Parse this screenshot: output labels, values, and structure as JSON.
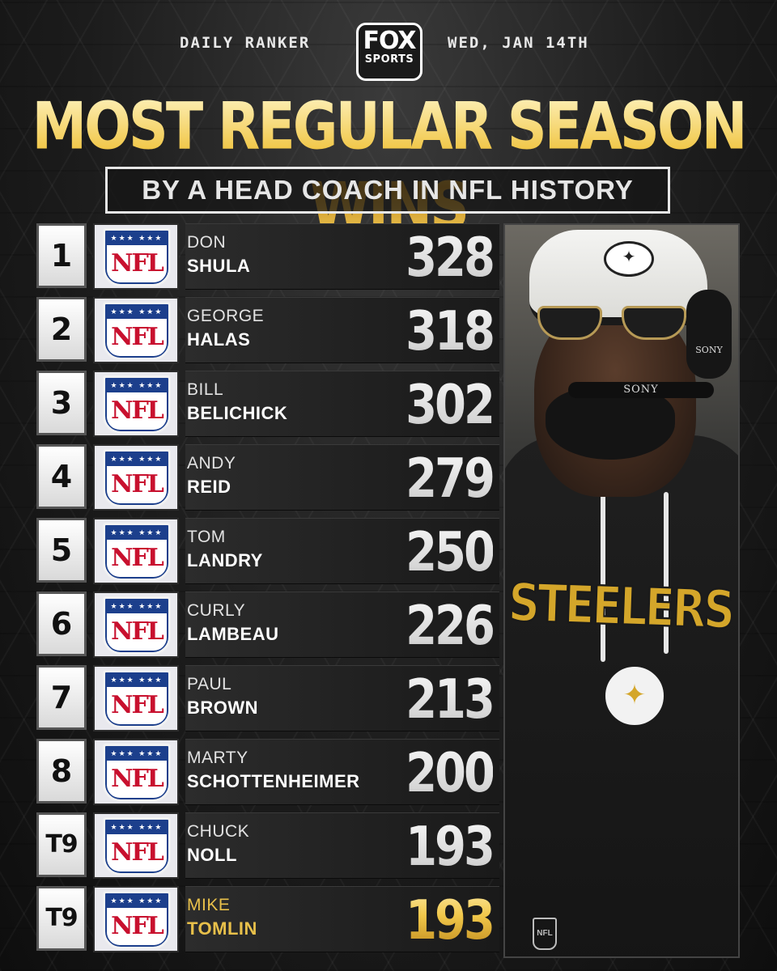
{
  "header": {
    "left": "DAILY RANKER",
    "right": "WED, JAN 14TH",
    "logo_top": "FOX",
    "logo_bottom": "SPORTS"
  },
  "title": "MOST REGULAR SEASON WINS",
  "subtitle": "BY A HEAD COACH IN NFL HISTORY",
  "logo_text": "NFL",
  "rows": [
    {
      "rank": "1",
      "first": "DON",
      "last": "SHULA",
      "wins": "328"
    },
    {
      "rank": "2",
      "first": "GEORGE",
      "last": "HALAS",
      "wins": "318"
    },
    {
      "rank": "3",
      "first": "BILL",
      "last": "BELICHICK",
      "wins": "302"
    },
    {
      "rank": "4",
      "first": "ANDY",
      "last": "REID",
      "wins": "279"
    },
    {
      "rank": "5",
      "first": "TOM",
      "last": "LANDRY",
      "wins": "250"
    },
    {
      "rank": "6",
      "first": "CURLY",
      "last": "LAMBEAU",
      "wins": "226"
    },
    {
      "rank": "7",
      "first": "PAUL",
      "last": "BROWN",
      "wins": "213"
    },
    {
      "rank": "8",
      "first": "MARTY",
      "last": "SCHOTTENHEIMER",
      "wins": "200"
    },
    {
      "rank": "T9",
      "first": "CHUCK",
      "last": "NOLL",
      "wins": "193"
    },
    {
      "rank": "T9",
      "first": "MIKE",
      "last": "TOMLIN",
      "wins": "193"
    }
  ],
  "photo": {
    "headset_brand": "SONY",
    "mic_brand": "SONY",
    "shirt_text": "STEELERS",
    "badge_icon": "steelers-logo-icon",
    "mini_logo": "NFL"
  },
  "colors": {
    "gold": "#f1c84b",
    "highlight_text": "#e8c04a",
    "nfl_red": "#c8102e",
    "nfl_blue": "#1c3f8c"
  }
}
